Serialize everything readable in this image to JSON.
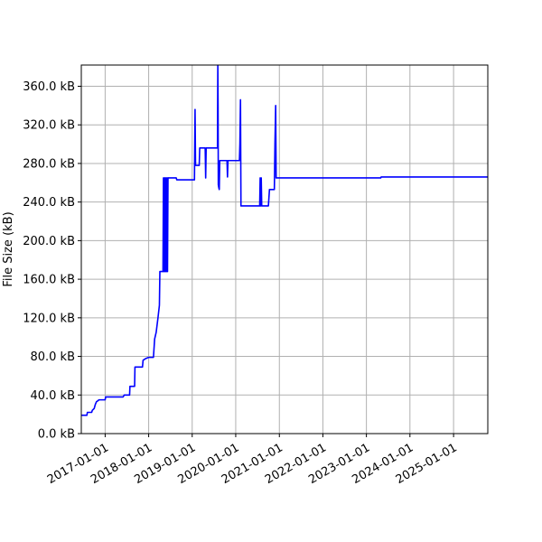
{
  "chart_data": {
    "type": "line",
    "title": "",
    "xlabel": "",
    "ylabel": "File Size (kB)",
    "grid": true,
    "legend": "none",
    "xlim": [
      "2016-06-15",
      "2025-10-15"
    ],
    "ylim": [
      0,
      382
    ],
    "y_ticks": [
      0,
      40,
      80,
      120,
      160,
      200,
      240,
      280,
      320,
      360
    ],
    "y_tick_labels": [
      "0.0 kB",
      "40.0 kB",
      "80.0 kB",
      "120.0 kB",
      "160.0 kB",
      "200.0 kB",
      "240.0 kB",
      "280.0 kB",
      "320.0 kB",
      "360.0 kB"
    ],
    "x_ticks": [
      "2017-01-01",
      "2018-01-01",
      "2019-01-01",
      "2020-01-01",
      "2021-01-01",
      "2022-01-01",
      "2023-01-01",
      "2024-01-01",
      "2025-01-01"
    ],
    "x_tick_labels": [
      "2017-01-01",
      "2018-01-01",
      "2019-01-01",
      "2020-01-01",
      "2021-01-01",
      "2022-01-01",
      "2023-01-01",
      "2024-01-01",
      "2025-01-01"
    ],
    "series": [
      {
        "color": "#0000ff",
        "points": [
          [
            "2016-06-15",
            19
          ],
          [
            "2016-08-01",
            19
          ],
          [
            "2016-08-05",
            22
          ],
          [
            "2016-09-10",
            22
          ],
          [
            "2016-09-15",
            24
          ],
          [
            "2016-10-01",
            26
          ],
          [
            "2016-10-10",
            30
          ],
          [
            "2016-10-20",
            33
          ],
          [
            "2016-11-01",
            34
          ],
          [
            "2016-11-10",
            35
          ],
          [
            "2017-01-01",
            35
          ],
          [
            "2017-01-05",
            38
          ],
          [
            "2017-06-01",
            38
          ],
          [
            "2017-06-10",
            40
          ],
          [
            "2017-07-25",
            40
          ],
          [
            "2017-07-28",
            49
          ],
          [
            "2017-09-05",
            49
          ],
          [
            "2017-09-08",
            69
          ],
          [
            "2017-11-10",
            69
          ],
          [
            "2017-11-15",
            76
          ],
          [
            "2017-12-10",
            78
          ],
          [
            "2018-01-01",
            79
          ],
          [
            "2018-02-10",
            79
          ],
          [
            "2018-02-20",
            98
          ],
          [
            "2018-03-05",
            105
          ],
          [
            "2018-03-20",
            120
          ],
          [
            "2018-04-01",
            133
          ],
          [
            "2018-04-05",
            168
          ],
          [
            "2018-05-01",
            168
          ],
          [
            "2018-05-05",
            265
          ],
          [
            "2018-05-08",
            168
          ],
          [
            "2018-05-12",
            265
          ],
          [
            "2018-05-16",
            168
          ],
          [
            "2018-05-20",
            265
          ],
          [
            "2018-05-24",
            168
          ],
          [
            "2018-05-28",
            265
          ],
          [
            "2018-06-01",
            168
          ],
          [
            "2018-06-05",
            265
          ],
          [
            "2018-06-08",
            168
          ],
          [
            "2018-06-12",
            265
          ],
          [
            "2018-08-20",
            265
          ],
          [
            "2018-08-25",
            263
          ],
          [
            "2019-01-20",
            263
          ],
          [
            "2019-01-25",
            336
          ],
          [
            "2019-01-29",
            278
          ],
          [
            "2019-03-01",
            278
          ],
          [
            "2019-03-05",
            296
          ],
          [
            "2019-04-20",
            296
          ],
          [
            "2019-04-24",
            265
          ],
          [
            "2019-04-28",
            296
          ],
          [
            "2019-08-01",
            296
          ],
          [
            "2019-08-04",
            382
          ],
          [
            "2019-08-06",
            340
          ],
          [
            "2019-08-08",
            258
          ],
          [
            "2019-08-12",
            255
          ],
          [
            "2019-08-16",
            253
          ],
          [
            "2019-08-20",
            283
          ],
          [
            "2019-10-20",
            283
          ],
          [
            "2019-10-24",
            266
          ],
          [
            "2019-10-28",
            283
          ],
          [
            "2020-02-01",
            283
          ],
          [
            "2020-02-05",
            300
          ],
          [
            "2020-02-10",
            346
          ],
          [
            "2020-02-14",
            236
          ],
          [
            "2020-07-20",
            236
          ],
          [
            "2020-07-24",
            265
          ],
          [
            "2020-07-28",
            236
          ],
          [
            "2020-08-02",
            265
          ],
          [
            "2020-08-06",
            236
          ],
          [
            "2020-10-01",
            236
          ],
          [
            "2020-10-10",
            253
          ],
          [
            "2020-11-20",
            253
          ],
          [
            "2020-11-25",
            300
          ],
          [
            "2020-12-01",
            340
          ],
          [
            "2020-12-05",
            265
          ],
          [
            "2023-05-01",
            265
          ],
          [
            "2023-05-05",
            266
          ],
          [
            "2025-10-15",
            266
          ]
        ]
      }
    ]
  }
}
